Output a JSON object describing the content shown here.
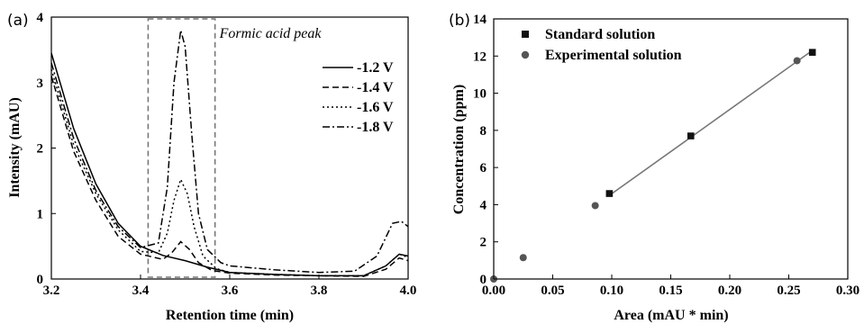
{
  "chart_data": [
    {
      "type": "line",
      "panel_label": "(a)",
      "xlabel": "Retention time (min)",
      "ylabel": "Intensity (mAU)",
      "xlim": [
        3.2,
        4.0
      ],
      "ylim": [
        0,
        4
      ],
      "xticks": [
        "3.2",
        "3.4",
        "3.6",
        "3.8",
        "4.0"
      ],
      "yticks": [
        "0",
        "1",
        "2",
        "3",
        "4"
      ],
      "annotation": "Formic acid peak",
      "highlight_x": [
        3.417,
        3.567
      ],
      "legend_position": "center-right",
      "series": [
        {
          "name": "-1.2 V",
          "style": "solid",
          "x": [
            3.2,
            3.25,
            3.3,
            3.35,
            3.4,
            3.45,
            3.5,
            3.55,
            3.6,
            3.7,
            3.8,
            3.9,
            3.95,
            3.98,
            4.0
          ],
          "y": [
            3.45,
            2.3,
            1.45,
            0.85,
            0.5,
            0.36,
            0.28,
            0.18,
            0.1,
            0.07,
            0.05,
            0.05,
            0.2,
            0.38,
            0.35
          ]
        },
        {
          "name": "-1.4 V",
          "style": "dashed",
          "x": [
            3.2,
            3.25,
            3.3,
            3.35,
            3.4,
            3.45,
            3.47,
            3.49,
            3.51,
            3.53,
            3.56,
            3.6,
            3.7,
            3.8,
            3.9,
            3.95,
            3.98,
            4.0
          ],
          "y": [
            3.1,
            1.95,
            1.2,
            0.65,
            0.38,
            0.3,
            0.4,
            0.57,
            0.45,
            0.25,
            0.13,
            0.09,
            0.06,
            0.05,
            0.04,
            0.15,
            0.32,
            0.28
          ]
        },
        {
          "name": "-1.6 V",
          "style": "dotted",
          "x": [
            3.2,
            3.25,
            3.3,
            3.35,
            3.4,
            3.44,
            3.46,
            3.475,
            3.49,
            3.505,
            3.52,
            3.54,
            3.57,
            3.6,
            3.7,
            3.8,
            3.9,
            3.95,
            3.98,
            4.0
          ],
          "y": [
            3.2,
            2.05,
            1.3,
            0.75,
            0.42,
            0.4,
            0.7,
            1.2,
            1.52,
            1.3,
            0.8,
            0.35,
            0.16,
            0.1,
            0.07,
            0.05,
            0.05,
            0.2,
            0.38,
            0.33
          ]
        },
        {
          "name": "-1.8 V",
          "style": "dashdot",
          "x": [
            3.2,
            3.25,
            3.3,
            3.35,
            3.4,
            3.44,
            3.46,
            3.475,
            3.49,
            3.5,
            3.515,
            3.53,
            3.55,
            3.58,
            3.6,
            3.7,
            3.8,
            3.88,
            3.93,
            3.965,
            3.985,
            4.0
          ],
          "y": [
            3.3,
            2.15,
            1.35,
            0.8,
            0.48,
            0.55,
            1.4,
            3.0,
            3.8,
            3.55,
            2.2,
            1.0,
            0.45,
            0.25,
            0.2,
            0.14,
            0.1,
            0.12,
            0.35,
            0.85,
            0.88,
            0.8
          ]
        }
      ]
    },
    {
      "type": "scatter",
      "panel_label": "(b)",
      "xlabel": "Area (mAU * min)",
      "ylabel": "Concentration (ppm)",
      "xlim": [
        0.0,
        0.3
      ],
      "ylim": [
        0,
        14
      ],
      "xticks": [
        "0.00",
        "0.05",
        "0.10",
        "0.15",
        "0.20",
        "0.25",
        "0.30"
      ],
      "yticks": [
        "0",
        "2",
        "4",
        "6",
        "8",
        "10",
        "12",
        "14"
      ],
      "legend_position": "top-left",
      "fit_line": {
        "x": [
          0.098,
          0.27
        ],
        "y": [
          4.5,
          12.3
        ]
      },
      "series": [
        {
          "name": "Standard solution",
          "marker": "square",
          "x": [
            0.098,
            0.167,
            0.27
          ],
          "y": [
            4.6,
            7.7,
            12.2
          ]
        },
        {
          "name": "Experimental solution",
          "marker": "circle",
          "x": [
            0.0,
            0.025,
            0.086,
            0.257
          ],
          "y": [
            0.0,
            1.15,
            3.95,
            11.75
          ]
        }
      ]
    }
  ]
}
